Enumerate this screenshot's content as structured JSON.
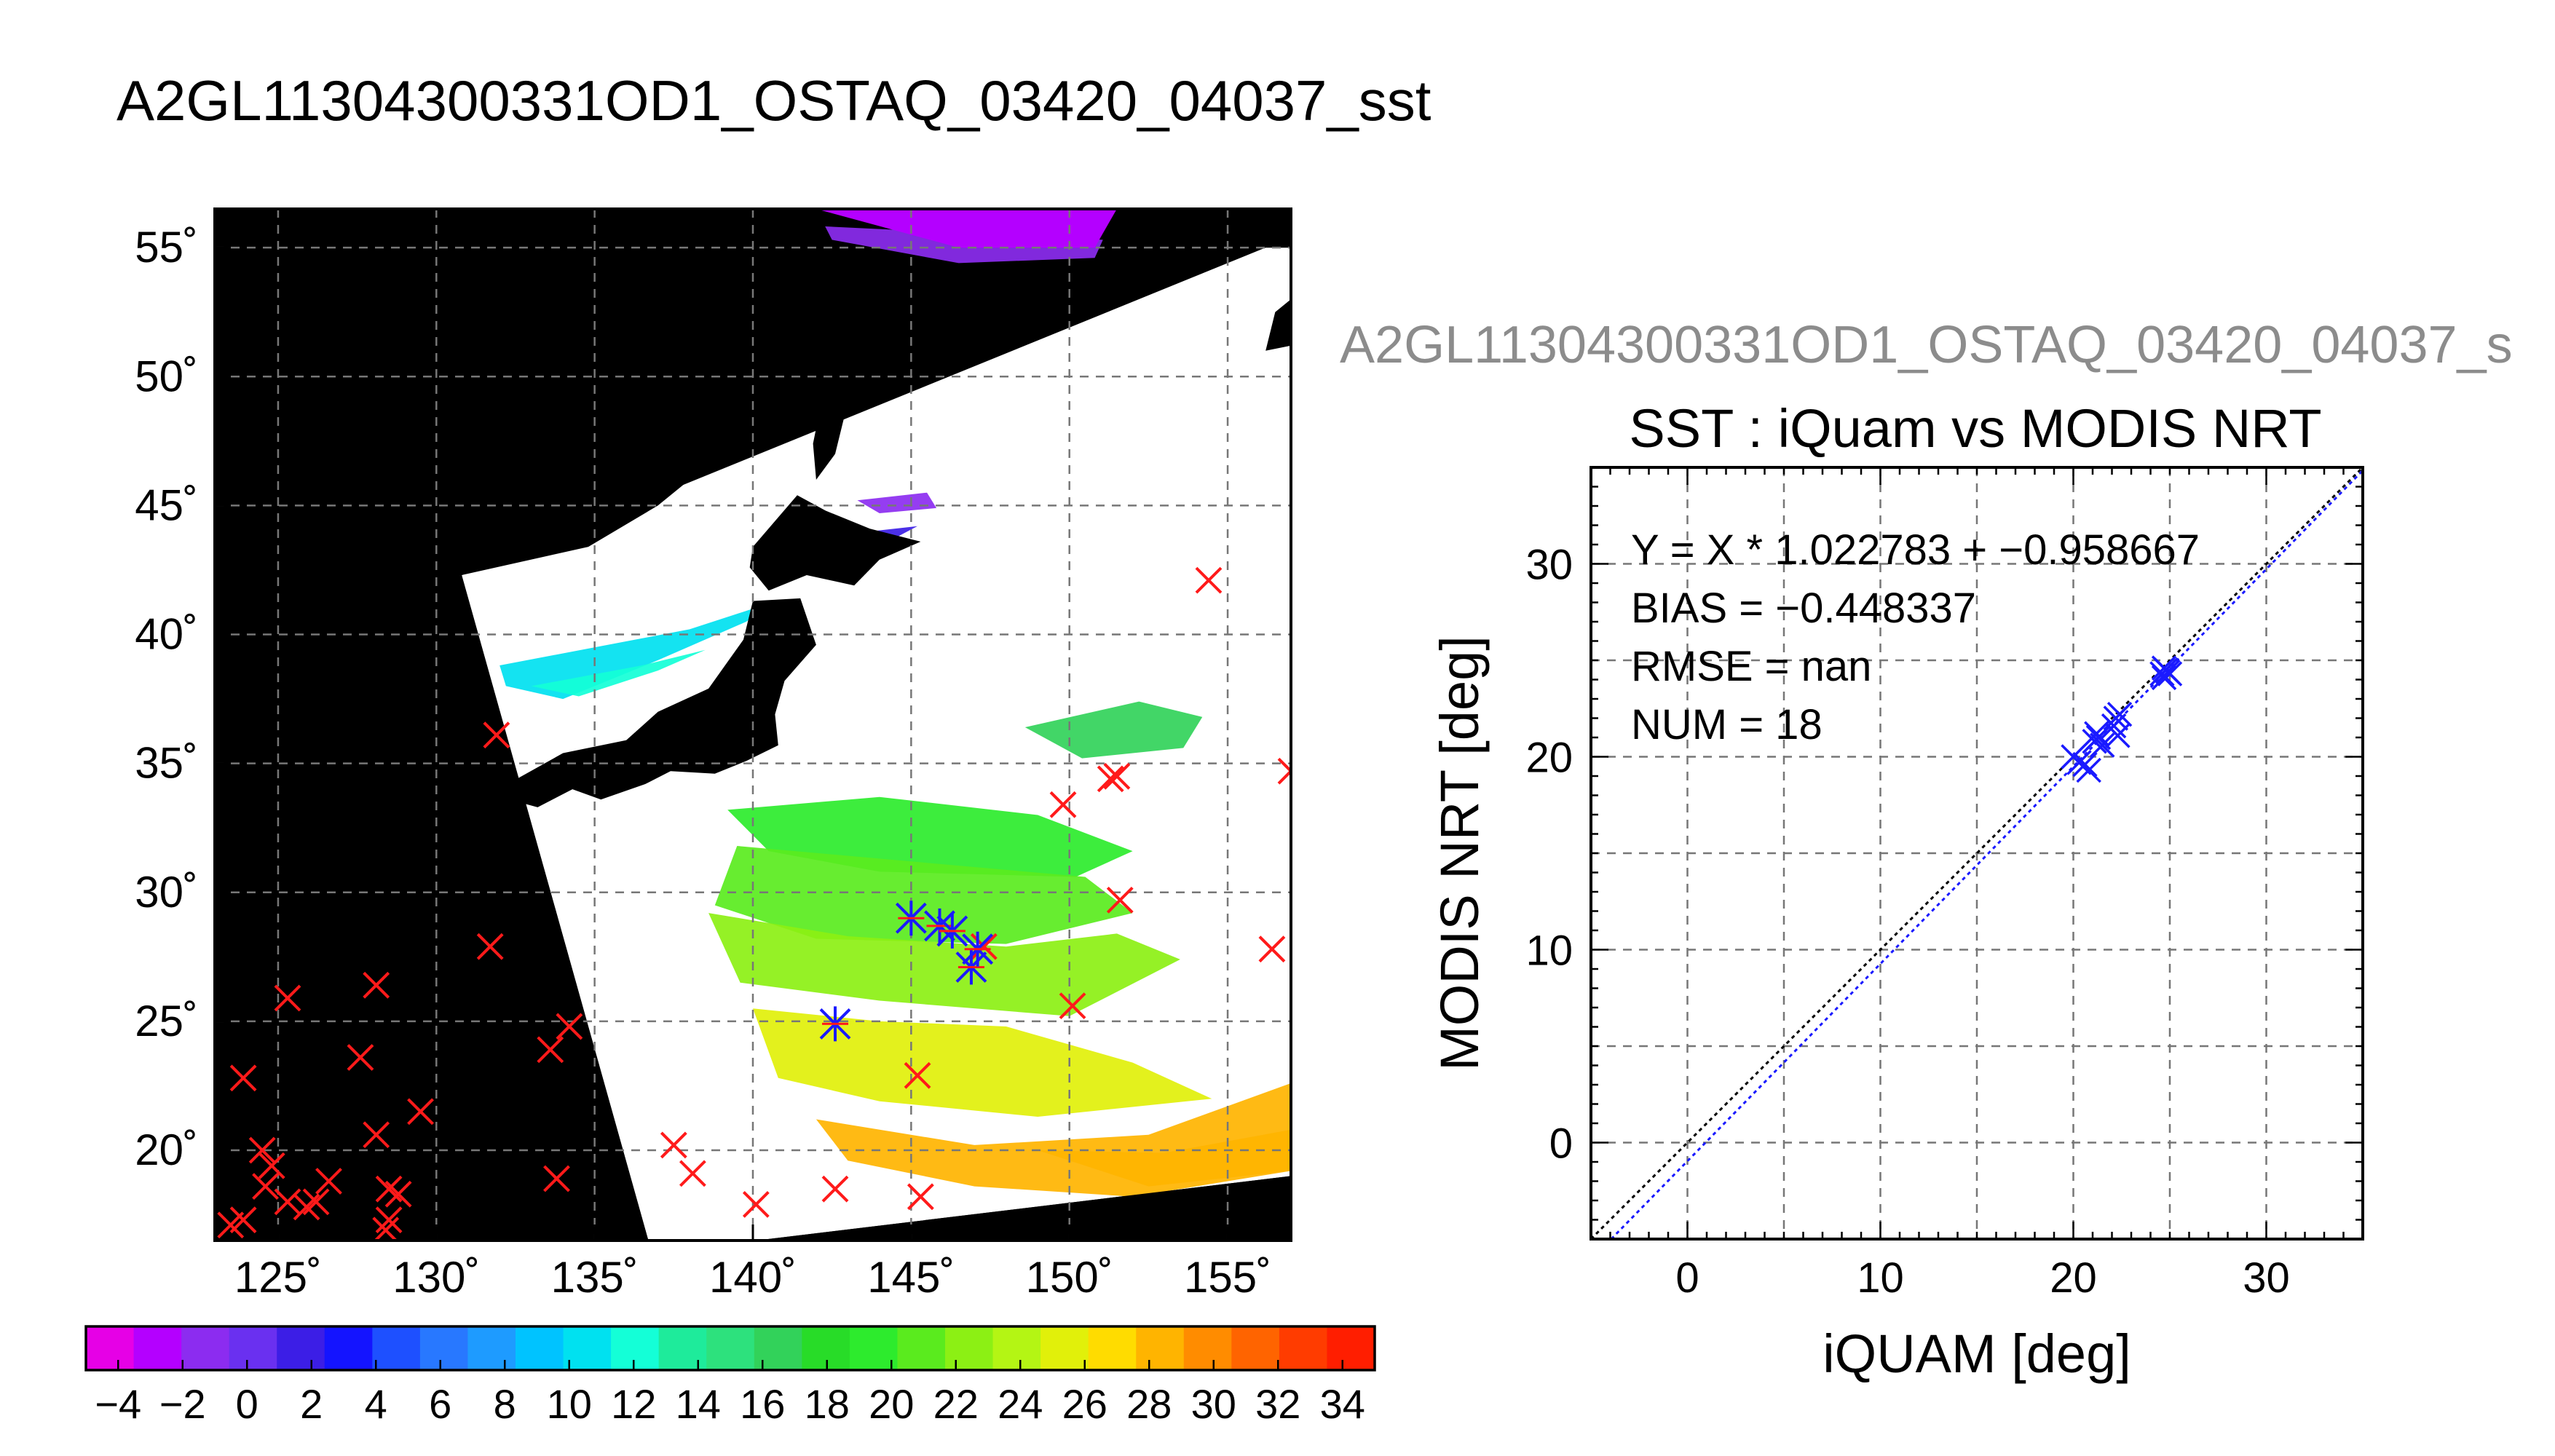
{
  "figure": {
    "main_title": "A2GL11304300331OD1_OSTAQ_03420_04037_sst",
    "sub_title_gray": "A2GL11304300331OD1_OSTAQ_03420_04037_s"
  },
  "colors": {
    "background": "#ffffff",
    "land": "#000000",
    "cloud": "#ffffff",
    "grid": "#777777",
    "marker_red": "#ff1a1a",
    "marker_blue": "#1a1aff",
    "gray_title": "#8c8c8c"
  },
  "chart_data": [
    {
      "type": "heatmap",
      "name": "sst-map",
      "xlim": [
        123,
        157
      ],
      "ylim": [
        16.5,
        56.5
      ],
      "x_ticks": [
        125,
        130,
        135,
        140,
        145,
        150,
        155
      ],
      "x_tick_labels": [
        "125˚",
        "130˚",
        "135˚",
        "140˚",
        "145˚",
        "150˚",
        "155˚"
      ],
      "y_ticks": [
        20,
        25,
        30,
        35,
        40,
        45,
        50,
        55
      ],
      "y_tick_labels": [
        "20˚",
        "25˚",
        "30˚",
        "35˚",
        "40˚",
        "45˚",
        "50˚",
        "55˚"
      ],
      "grid": true,
      "swath_polygon": [
        [
          130.8,
          42.3
        ],
        [
          156.2,
          55.0
        ],
        [
          157,
          55.0
        ],
        [
          157,
          19.0
        ],
        [
          140.1,
          16.5
        ],
        [
          136.7,
          16.5
        ]
      ],
      "colorbar": {
        "min": -5,
        "max": 35,
        "colors": [
          "#e600e6",
          "#b400ff",
          "#8c2cf0",
          "#6a30f0",
          "#3c1ee6",
          "#1414ff",
          "#1e50ff",
          "#2878ff",
          "#1e9bff",
          "#00c3ff",
          "#00e1f0",
          "#14ffd7",
          "#1eeb9b",
          "#2de17d",
          "#32d25a",
          "#28dc28",
          "#2deb2d",
          "#5aeb1e",
          "#8cf014",
          "#b4f514",
          "#e1f00a",
          "#ffdc00",
          "#ffb400",
          "#ff8c00",
          "#ff6400",
          "#ff3c00",
          "#ff1e00"
        ],
        "tick_labels": [
          "−4",
          "−2",
          "0",
          "2",
          "4",
          "6",
          "8",
          "10",
          "12",
          "14",
          "16",
          "18",
          "20",
          "22",
          "24",
          "26",
          "28",
          "30",
          "32",
          "34"
        ]
      },
      "red_markers": [
        [
          154.4,
          42.1
        ],
        [
          131.9,
          36.1
        ],
        [
          157.0,
          34.7
        ],
        [
          151.5,
          34.5
        ],
        [
          151.3,
          34.4
        ],
        [
          149.8,
          33.4
        ],
        [
          151.6,
          29.7
        ],
        [
          156.4,
          27.8
        ],
        [
          147.3,
          27.9
        ],
        [
          131.7,
          27.9
        ],
        [
          128.1,
          26.4
        ],
        [
          125.3,
          25.9
        ],
        [
          150.1,
          25.6
        ],
        [
          134.2,
          24.8
        ],
        [
          133.6,
          23.9
        ],
        [
          127.6,
          23.6
        ],
        [
          145.2,
          22.9
        ],
        [
          123.9,
          22.8
        ],
        [
          129.5,
          21.5
        ],
        [
          128.1,
          20.6
        ],
        [
          137.5,
          20.2
        ],
        [
          124.5,
          20.0
        ],
        [
          124.8,
          19.4
        ],
        [
          138.1,
          19.1
        ],
        [
          133.8,
          18.9
        ],
        [
          126.6,
          18.8
        ],
        [
          124.6,
          18.6
        ],
        [
          142.6,
          18.5
        ],
        [
          128.5,
          18.5
        ],
        [
          128.8,
          18.3
        ],
        [
          145.3,
          18.2
        ],
        [
          125.3,
          18.0
        ],
        [
          126.2,
          18.0
        ],
        [
          125.9,
          17.8
        ],
        [
          140.1,
          17.9
        ],
        [
          128.5,
          17.3
        ],
        [
          123.5,
          17.1
        ],
        [
          123.9,
          17.3
        ],
        [
          128.4,
          16.9
        ]
      ],
      "blue_markers": [
        [
          145.0,
          29.0
        ],
        [
          145.9,
          28.7
        ],
        [
          146.3,
          28.5
        ],
        [
          146.9,
          27.1
        ],
        [
          147.1,
          27.8
        ],
        [
          142.6,
          24.9
        ]
      ]
    },
    {
      "type": "scatter",
      "name": "iquam-vs-modis",
      "title": "SST : iQuam vs MODIS NRT",
      "xlabel": "iQUAM [deg]",
      "ylabel": "MODIS NRT [deg]",
      "xlim": [
        -5,
        35
      ],
      "ylim": [
        -5,
        35
      ],
      "x_ticks": [
        0,
        10,
        20,
        30
      ],
      "y_ticks": [
        0,
        10,
        20,
        30
      ],
      "grid": true,
      "annotations": [
        "Y = X * 1.022783 + −0.958667",
        "BIAS = −0.448337",
        "RMSE = nan",
        "NUM = 18"
      ],
      "fit": {
        "slope": 1.022783,
        "intercept": -0.958667
      },
      "points": [
        [
          20.0,
          20.0
        ],
        [
          20.3,
          19.7
        ],
        [
          20.6,
          19.6
        ],
        [
          20.8,
          19.3
        ],
        [
          21.1,
          20.8
        ],
        [
          21.3,
          21.0
        ],
        [
          21.5,
          20.6
        ],
        [
          22.1,
          21.6
        ],
        [
          22.2,
          22.0
        ],
        [
          22.3,
          21.1
        ],
        [
          22.4,
          22.2
        ],
        [
          24.6,
          24.3
        ],
        [
          24.7,
          24.1
        ],
        [
          24.8,
          24.5
        ],
        [
          24.9,
          24.4
        ],
        [
          24.7,
          24.6
        ],
        [
          25.0,
          24.3
        ],
        [
          21.2,
          21.2
        ]
      ]
    }
  ]
}
